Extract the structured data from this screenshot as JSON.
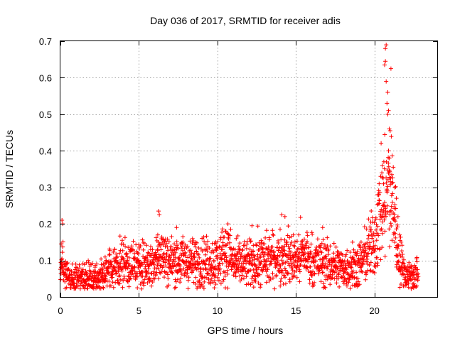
{
  "chart_data": {
    "type": "scatter",
    "title": "Day 036 of 2017, SRMTID for receiver adis",
    "xlabel": "GPS time / hours",
    "ylabel": "SRMTID / TECUs",
    "xlim": [
      0,
      24
    ],
    "ylim": [
      0,
      0.7
    ],
    "xticks": [
      0,
      5,
      10,
      15,
      20
    ],
    "xtick_labels": [
      "0",
      "5",
      "10",
      "15",
      "20"
    ],
    "yticks": [
      0,
      0.1,
      0.2,
      0.3,
      0.4,
      0.5,
      0.6,
      0.7
    ],
    "ytick_labels": [
      "0",
      "0.1",
      "0.2",
      "0.3",
      "0.4",
      "0.5",
      "0.6",
      "0.7"
    ],
    "grid": true,
    "marker": "plus",
    "colors": {
      "series": "#ff0000",
      "grid": "#a0a0a0",
      "frame": "#000000"
    },
    "series": [
      {
        "name": "SRMTID",
        "profile": [
          [
            0.0,
            0.06
          ],
          [
            0.15,
            0.1
          ],
          [
            0.3,
            0.06
          ],
          [
            0.6,
            0.05
          ],
          [
            1.0,
            0.05
          ],
          [
            1.5,
            0.05
          ],
          [
            2.0,
            0.05
          ],
          [
            2.5,
            0.06
          ],
          [
            3.0,
            0.07
          ],
          [
            3.5,
            0.085
          ],
          [
            4.0,
            0.095
          ],
          [
            4.5,
            0.09
          ],
          [
            5.0,
            0.085
          ],
          [
            5.5,
            0.09
          ],
          [
            6.0,
            0.09
          ],
          [
            6.3,
            0.13
          ],
          [
            6.6,
            0.11
          ],
          [
            7.0,
            0.1
          ],
          [
            7.5,
            0.1
          ],
          [
            8.0,
            0.095
          ],
          [
            9.0,
            0.095
          ],
          [
            10.0,
            0.1
          ],
          [
            10.7,
            0.13
          ],
          [
            11.0,
            0.09
          ],
          [
            12.0,
            0.09
          ],
          [
            13.0,
            0.1
          ],
          [
            14.0,
            0.11
          ],
          [
            14.5,
            0.11
          ],
          [
            15.0,
            0.1
          ],
          [
            15.5,
            0.12
          ],
          [
            16.0,
            0.1
          ],
          [
            17.0,
            0.09
          ],
          [
            18.0,
            0.08
          ],
          [
            19.0,
            0.085
          ],
          [
            19.5,
            0.12
          ],
          [
            20.0,
            0.15
          ],
          [
            20.3,
            0.22
          ],
          [
            20.6,
            0.25
          ],
          [
            20.9,
            0.3
          ],
          [
            21.2,
            0.25
          ],
          [
            21.5,
            0.12
          ],
          [
            21.8,
            0.08
          ],
          [
            22.0,
            0.06
          ],
          [
            22.5,
            0.06
          ],
          [
            22.8,
            0.06
          ]
        ],
        "outliers": [
          [
            0.1,
            0.21
          ],
          [
            0.15,
            0.2
          ],
          [
            0.05,
            0.145
          ],
          [
            6.25,
            0.235
          ],
          [
            6.3,
            0.225
          ],
          [
            6.2,
            0.17
          ],
          [
            7.4,
            0.19
          ],
          [
            10.5,
            0.18
          ],
          [
            12.2,
            0.195
          ],
          [
            14.1,
            0.225
          ],
          [
            14.3,
            0.22
          ],
          [
            16.7,
            0.19
          ],
          [
            20.75,
            0.69
          ],
          [
            20.7,
            0.68
          ],
          [
            20.7,
            0.645
          ],
          [
            20.65,
            0.635
          ],
          [
            20.75,
            0.59
          ],
          [
            21.05,
            0.625
          ],
          [
            20.85,
            0.56
          ],
          [
            20.8,
            0.53
          ],
          [
            20.9,
            0.51
          ],
          [
            20.85,
            0.5
          ],
          [
            20.95,
            0.46
          ],
          [
            21.0,
            0.455
          ],
          [
            20.9,
            0.4
          ],
          [
            20.95,
            0.38
          ],
          [
            20.6,
            0.37
          ],
          [
            20.5,
            0.36
          ],
          [
            21.2,
            0.355
          ],
          [
            20.4,
            0.33
          ],
          [
            21.1,
            0.335
          ],
          [
            20.3,
            0.31
          ],
          [
            21.3,
            0.3
          ],
          [
            20.2,
            0.28
          ],
          [
            21.4,
            0.27
          ],
          [
            21.5,
            0.22
          ],
          [
            21.6,
            0.17
          ],
          [
            21.7,
            0.15
          ],
          [
            9.8,
            0.025
          ],
          [
            9.9,
            0.035
          ],
          [
            4.9,
            0.025
          ],
          [
            5.1,
            0.14
          ],
          [
            7.8,
            0.15
          ],
          [
            11.2,
            0.16
          ],
          [
            18.6,
            0.15
          ]
        ]
      }
    ]
  }
}
